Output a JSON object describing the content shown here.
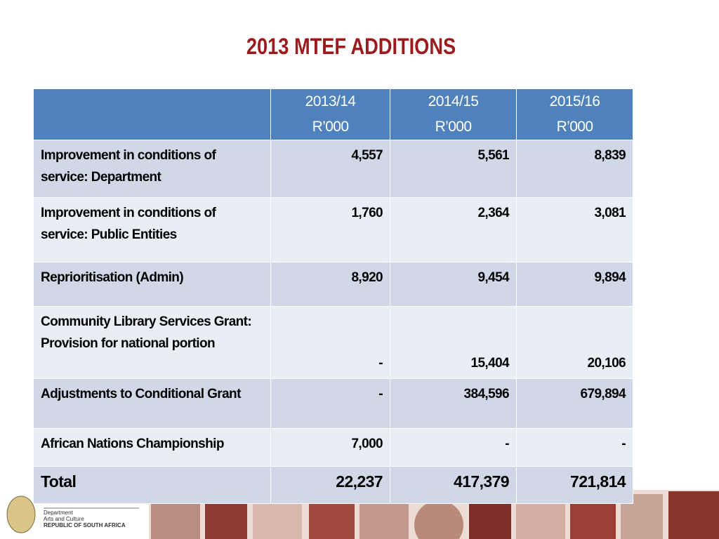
{
  "header": {
    "title": "2013 MTEF ADDITIONS"
  },
  "table": {
    "columns": [
      {
        "period": "2013/14",
        "unit": "R’000"
      },
      {
        "period": "2014/15",
        "unit": "R’000"
      },
      {
        "period": "2015/16",
        "unit": "R’000"
      }
    ],
    "rows": [
      [
        "Improvement in conditions of service: Department",
        "4,557",
        "5,561",
        "8,839"
      ],
      [
        "Improvement in conditions of service: Public Entities",
        "1,760",
        "2,364",
        "3,081"
      ],
      [
        "Reprioritisation (Admin)",
        "8,920",
        "9,454",
        "9,894"
      ],
      [
        "Community Library Services Grant:  Provision for national portion",
        "-",
        "15,404",
        "20,106"
      ],
      [
        "Adjustments to Conditional Grant",
        "-",
        "384,596",
        "679,894"
      ],
      [
        "African Nations Championship",
        "7,000",
        "-",
        "-"
      ],
      [
        "Total",
        "22,237",
        "417,379",
        "721,814"
      ]
    ]
  },
  "footer": {
    "department": "Department",
    "branch": "Arts and Culture",
    "country": "REPUBLIC OF SOUTH AFRICA"
  }
}
